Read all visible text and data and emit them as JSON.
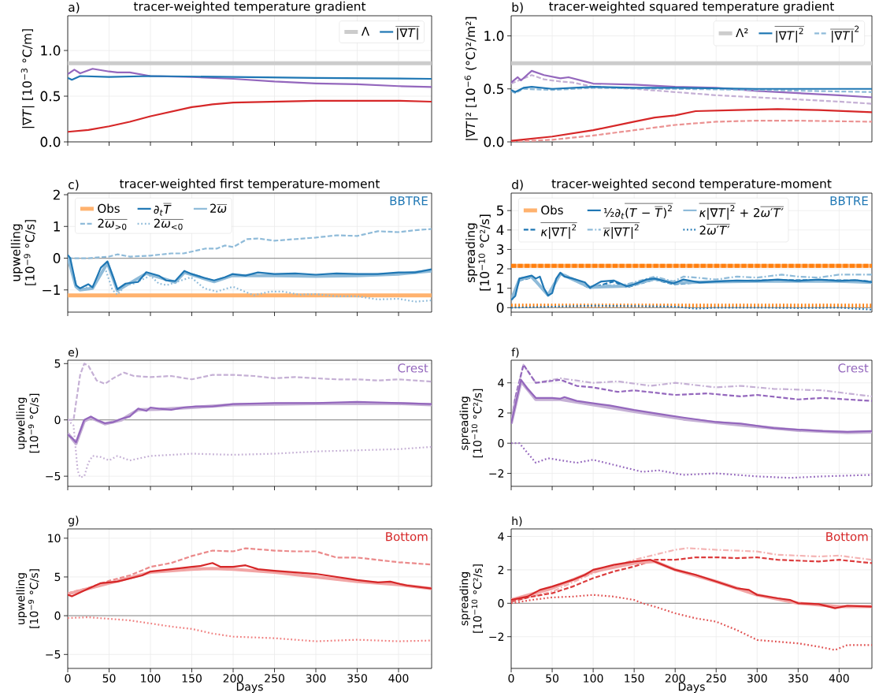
{
  "chart_data": [
    {
      "type": "line",
      "title": "tracer-weighted temperature gradient",
      "ylabel": "|∇*T*|  [10$^{−3}$ °C/m]",
      "annotations": [
        "a)"
      ],
      "xlim": [
        0,
        440
      ],
      "ylim": [
        0,
        1.38
      ],
      "xticks": [
        0,
        50,
        100,
        150,
        200,
        250,
        300,
        350,
        400
      ],
      "yticks": [
        {
          "value": 0,
          "label": "0.0"
        },
        0.5,
        {
          "value": 1,
          "label": "1.0"
        }
      ],
      "tick_labels": "y",
      "grid": true,
      "legend": "top right",
      "ref_lines": [
        {
          "axis": "y",
          "value": 0.86,
          "label": "Λ",
          "color": "#cccccc",
          "line_style": "solid"
        }
      ],
      "series": [
        {
          "name": "\\overline{\\text{|∇\\textit{T}|}}",
          "color": "#1f77b4",
          "line_style": "solid",
          "x": [
            0,
            5,
            15,
            50,
            100,
            200,
            300,
            440
          ],
          "values": [
            0.7,
            0.68,
            0.72,
            0.71,
            0.72,
            0.71,
            0.7,
            0.69
          ]
        },
        {
          "color": "#9467bd",
          "line_style": "solid",
          "x": [
            0,
            8,
            15,
            30,
            50,
            60,
            75,
            100,
            150,
            200,
            250,
            300,
            350,
            400,
            440
          ],
          "values": [
            0.74,
            0.79,
            0.75,
            0.8,
            0.77,
            0.76,
            0.76,
            0.72,
            0.71,
            0.69,
            0.66,
            0.64,
            0.63,
            0.61,
            0.6
          ]
        },
        {
          "color": "#d62728",
          "line_style": "solid",
          "x": [
            0,
            25,
            50,
            75,
            100,
            125,
            150,
            175,
            200,
            250,
            300,
            350,
            400,
            440
          ],
          "values": [
            0.11,
            0.13,
            0.17,
            0.22,
            0.28,
            0.33,
            0.38,
            0.41,
            0.43,
            0.44,
            0.45,
            0.45,
            0.45,
            0.44
          ]
        }
      ]
    },
    {
      "type": "line",
      "title": "tracer-weighted squared temperature gradient",
      "ylabel": "|∇*T*|²  [10$^{−6}$ (°C)²/m²]",
      "annotations": [
        "b)"
      ],
      "xlim": [
        0,
        440
      ],
      "ylim": [
        0,
        1.19
      ],
      "xticks": [
        0,
        50,
        100,
        150,
        200,
        250,
        300,
        350,
        400
      ],
      "yticks": [
        {
          "value": 0,
          "label": "0.0"
        },
        0.5,
        {
          "value": 1,
          "label": "1.0"
        }
      ],
      "tick_labels": "y",
      "grid": true,
      "legend": "top right",
      "ref_lines": [
        {
          "axis": "y",
          "value": 0.742,
          "label": "Λ²",
          "color": "#cccccc",
          "line_style": "solid"
        }
      ],
      "series": [
        {
          "name": "\\overline{\\text{|∇\\textit{T}|}^{\\text{2}}}",
          "color": "#1f77b4",
          "line_style": "solid",
          "x": [
            0,
            5,
            15,
            25,
            50,
            100,
            150,
            200,
            300,
            440
          ],
          "values": [
            0.49,
            0.47,
            0.51,
            0.52,
            0.5,
            0.52,
            0.51,
            0.51,
            0.5,
            0.5
          ]
        },
        {
          "name": "\\overline{\\text{|∇\\textit{T}|}}^{\\text{2}}",
          "color": "#8fbbd9",
          "line_style": "dashed",
          "x": [
            0,
            5,
            15,
            50,
            100,
            200,
            300,
            440
          ],
          "values": [
            0.48,
            0.46,
            0.5,
            0.49,
            0.51,
            0.5,
            0.49,
            0.47
          ]
        },
        {
          "color": "#9467bd",
          "line_style": "solid",
          "x": [
            0,
            8,
            12,
            25,
            40,
            60,
            70,
            90,
            100,
            150,
            200,
            250,
            300,
            350,
            400,
            440
          ],
          "values": [
            0.56,
            0.61,
            0.58,
            0.67,
            0.63,
            0.6,
            0.61,
            0.57,
            0.55,
            0.54,
            0.52,
            0.51,
            0.48,
            0.46,
            0.44,
            0.42
          ]
        },
        {
          "color": "#c5b0d5",
          "line_style": "dashed",
          "x": [
            0,
            25,
            40,
            60,
            75,
            100,
            150,
            200,
            250,
            300,
            350,
            400,
            440
          ],
          "values": [
            0.55,
            0.63,
            0.59,
            0.57,
            0.56,
            0.52,
            0.5,
            0.47,
            0.44,
            0.42,
            0.4,
            0.38,
            0.36
          ]
        },
        {
          "color": "#d62728",
          "line_style": "solid",
          "x": [
            0,
            50,
            100,
            150,
            175,
            200,
            225,
            275,
            325,
            375,
            440
          ],
          "values": [
            0.01,
            0.05,
            0.11,
            0.19,
            0.23,
            0.25,
            0.29,
            0.3,
            0.31,
            0.3,
            0.28
          ]
        },
        {
          "color": "#eb9393",
          "line_style": "dashed",
          "x": [
            0,
            50,
            100,
            150,
            200,
            250,
            300,
            350,
            440
          ],
          "values": [
            0.0,
            0.02,
            0.06,
            0.11,
            0.16,
            0.19,
            0.2,
            0.2,
            0.19
          ]
        }
      ]
    },
    {
      "type": "line",
      "title": "tracer-weighted first temperature-moment",
      "ylabel": "upwelling [10$^{−9}$ °C/s]",
      "annotations": [
        "c)",
        "BBTRE"
      ],
      "xlim": [
        0,
        440
      ],
      "ylim": [
        -1.7,
        2.05
      ],
      "xticks": [
        0,
        50,
        100,
        150,
        200,
        250,
        300,
        350,
        400
      ],
      "yticks": [
        {
          "value": -1,
          "label": "−1"
        },
        0,
        1,
        2
      ],
      "tick_labels": "y",
      "grid": true,
      "legend": "top left",
      "ref_lines": [
        {
          "axis": "y",
          "value": 0,
          "color": "#999999",
          "line_style": "solid"
        },
        {
          "axis": "y",
          "value": -1.17,
          "label": "Obs",
          "color": "#ffb26e",
          "line_style": "solid"
        }
      ],
      "series": [
        {
          "name": "\\text{∂}_{\\text{\\textit{t}}}\\overline{\\text{\\textit{T}}}",
          "color": "#1f77b4",
          "line_style": "solid",
          "x": [
            0,
            3,
            10,
            15,
            25,
            30,
            40,
            48,
            55,
            60,
            70,
            85,
            95,
            110,
            119,
            130,
            141,
            150,
            165,
            177,
            190,
            199,
            215,
            230,
            250,
            275,
            300,
            325,
            350,
            375,
            400,
            420,
            440
          ],
          "values": [
            0.1,
            0.0,
            -0.85,
            -0.95,
            -0.82,
            -0.92,
            -0.3,
            -0.1,
            -0.6,
            -0.98,
            -0.8,
            -0.75,
            -0.44,
            -0.55,
            -0.7,
            -0.72,
            -0.4,
            -0.5,
            -0.62,
            -0.7,
            -0.6,
            -0.5,
            -0.55,
            -0.45,
            -0.5,
            -0.48,
            -0.52,
            -0.48,
            -0.5,
            -0.5,
            -0.45,
            -0.45,
            -0.35
          ]
        },
        {
          "name": "\\text{2}\\overline{\\text{\\textit{ω}}}",
          "color": "#8fbbd9",
          "line_style": "solid",
          "x": [
            0,
            10,
            15,
            30,
            48,
            60,
            95,
            130,
            141,
            177,
            199,
            250,
            300,
            350,
            400,
            440
          ],
          "values": [
            0.05,
            -0.9,
            -1.0,
            -0.95,
            -0.15,
            -1.02,
            -0.48,
            -0.76,
            -0.45,
            -0.74,
            -0.55,
            -0.55,
            -0.57,
            -0.55,
            -0.5,
            -0.4
          ]
        },
        {
          "name": "\\text{2}\\overline{\\text{\\textit{ω}}_{\\text{>0}}}",
          "color": "#8fbbd9",
          "line_style": "dashed",
          "x": [
            0,
            25,
            50,
            60,
            75,
            100,
            125,
            140,
            166,
            180,
            190,
            200,
            217,
            230,
            250,
            275,
            300,
            325,
            350,
            375,
            400,
            420,
            440
          ],
          "values": [
            0.0,
            0.0,
            0.05,
            0.12,
            0.05,
            0.08,
            0.15,
            0.15,
            0.3,
            0.3,
            0.4,
            0.35,
            0.6,
            0.62,
            0.55,
            0.6,
            0.65,
            0.72,
            0.7,
            0.85,
            0.82,
            0.88,
            0.92
          ]
        },
        {
          "name": "\\text{2}\\overline{\\text{\\textit{ω}}_{\\text{<0}}}",
          "color": "#8fbbd9",
          "line_style": "dotted",
          "x": [
            0,
            10,
            15,
            30,
            45,
            54,
            60,
            70,
            80,
            100,
            110,
            120,
            149,
            165,
            180,
            200,
            225,
            245,
            260,
            280,
            300,
            325,
            350,
            375,
            400,
            420,
            440
          ],
          "values": [
            0.0,
            -0.9,
            -0.95,
            -0.9,
            -0.3,
            -1.0,
            -1.15,
            -0.85,
            -0.8,
            -0.55,
            -0.8,
            -0.85,
            -0.6,
            -0.95,
            -1.05,
            -0.9,
            -1.17,
            -1.05,
            -1.05,
            -1.15,
            -1.13,
            -1.2,
            -1.2,
            -1.3,
            -1.28,
            -1.37,
            -1.33
          ]
        }
      ]
    },
    {
      "type": "line",
      "title": "tracer-weighted second temperature-moment",
      "ylabel": "spreading [10$^{−10}$ °C²/s]",
      "annotations": [
        "d)",
        "BBTRE"
      ],
      "xlim": [
        0,
        440
      ],
      "ylim": [
        -0.23,
        5.9
      ],
      "xticks": [
        0,
        50,
        100,
        150,
        200,
        250,
        300,
        350,
        400
      ],
      "yticks": [
        0,
        1,
        2,
        3,
        4,
        5
      ],
      "tick_labels": "y",
      "grid": true,
      "legend": "top left",
      "ref_lines": [
        {
          "axis": "y",
          "value": 0,
          "color": "#999999",
          "line_style": "solid"
        },
        {
          "axis": "y",
          "value": 2.15,
          "label": "Obs",
          "color": "#ffb26e",
          "line_style": "solid"
        },
        {
          "axis": "y",
          "value": 2.15,
          "color": "#ff7f0e",
          "line_style": "dashed"
        },
        {
          "axis": "y",
          "value": 0.1,
          "color": "#ff7f0e",
          "line_style": "dotted"
        }
      ],
      "series": [
        {
          "name": "\\text{½∂}_{\\text{\\textit{t}}}\\overline{\\text{(\\textit{T} − }\\overline{\\text{\\textit{T}}}\\text{)}^{\\text{2}}}",
          "color": "#1f77b4",
          "line_style": "solid",
          "x": [
            0,
            5,
            10,
            20,
            25,
            30,
            35,
            40,
            45,
            50,
            55,
            60,
            65,
            75,
            90,
            96,
            110,
            125,
            141,
            150,
            165,
            175,
            198,
            210,
            230,
            250,
            275,
            300,
            325,
            350,
            375,
            400,
            420,
            440
          ],
          "values": [
            0.4,
            0.6,
            1.5,
            1.6,
            1.65,
            1.5,
            1.6,
            1.0,
            0.62,
            0.75,
            1.5,
            1.8,
            1.6,
            1.5,
            1.3,
            1.03,
            1.35,
            1.4,
            1.1,
            1.2,
            1.45,
            1.5,
            1.25,
            1.45,
            1.3,
            1.35,
            1.4,
            1.38,
            1.45,
            1.38,
            1.45,
            1.38,
            1.42,
            1.32
          ]
        },
        {
          "name": "\\overline{\\text{\\textit{κ}|∇\\textit{T}|}^{\\text{2}}}\\text{ + 2}\\overline{\\text{\\textit{ω}′\\textit{T}′}}",
          "color": "#8fbbd9",
          "line_style": "solid",
          "x": [
            0,
            10,
            25,
            45,
            60,
            96,
            141,
            175,
            198,
            250,
            300,
            350,
            400,
            440
          ],
          "values": [
            0.4,
            1.45,
            1.6,
            0.65,
            1.75,
            1.05,
            1.12,
            1.48,
            1.28,
            1.33,
            1.36,
            1.36,
            1.36,
            1.3
          ]
        },
        {
          "name": "\\overline{\\text{\\textit{κ}|∇\\textit{T}|}^{\\text{2}}}",
          "color": "#1f77b4",
          "line_style": "dashed",
          "x": [
            0,
            10,
            25,
            45,
            60,
            75,
            96,
            125,
            141,
            175,
            198,
            230,
            275,
            325,
            375,
            420,
            440
          ],
          "values": [
            0.4,
            1.4,
            1.55,
            0.65,
            1.75,
            1.45,
            1.0,
            1.35,
            1.05,
            1.45,
            1.2,
            1.3,
            1.38,
            1.42,
            1.42,
            1.4,
            1.35
          ]
        },
        {
          "name": "\\overline{\\text{\\textit{κ}}}\\overline{\\text{|∇\\textit{T}|}^{\\text{2}}}",
          "color": "#8fbbd9",
          "line_style": "dashdot",
          "x": [
            0,
            10,
            25,
            45,
            60,
            96,
            141,
            175,
            198,
            210,
            225,
            250,
            275,
            300,
            330,
            350,
            375,
            400,
            440
          ],
          "values": [
            0.4,
            1.5,
            1.6,
            0.7,
            1.8,
            1.1,
            1.2,
            1.6,
            1.35,
            1.6,
            1.55,
            1.45,
            1.6,
            1.55,
            1.7,
            1.6,
            1.55,
            1.7,
            1.7
          ]
        },
        {
          "name": "\\text{2}\\overline{\\text{\\textit{ω}′\\textit{T}′}}",
          "color": "#1f77b4",
          "line_style": "dotted",
          "x": [
            0,
            50,
            100,
            150,
            200,
            225,
            250,
            300,
            350,
            400,
            440
          ],
          "values": [
            0.0,
            0.05,
            0.1,
            0.08,
            0.05,
            -0.05,
            0.0,
            0.0,
            -0.02,
            0.0,
            -0.1
          ]
        }
      ]
    },
    {
      "type": "line",
      "ylabel": "upwelling [10$^{−9}$ °C/s]",
      "annotations": [
        "e)",
        "Crest"
      ],
      "xlim": [
        0,
        440
      ],
      "ylim": [
        -5.9,
        5.3
      ],
      "xticks": [
        0,
        50,
        100,
        150,
        200,
        250,
        300,
        350,
        400
      ],
      "yticks": [
        {
          "value": -5,
          "label": "−5"
        },
        0,
        5
      ],
      "tick_labels": "y",
      "grid": true,
      "ref_lines": [
        {
          "axis": "y",
          "value": 0,
          "color": "#999999",
          "line_style": "solid"
        }
      ],
      "series": [
        {
          "color": "#9467bd",
          "line_style": "solid",
          "x": [
            0,
            5,
            10,
            15,
            20,
            28,
            35,
            45,
            55,
            65,
            75,
            85,
            95,
            100,
            110,
            125,
            140,
            155,
            175,
            200,
            250,
            300,
            350,
            400,
            440
          ],
          "values": [
            -1.3,
            -1.6,
            -2.0,
            -1.0,
            0.0,
            0.3,
            0.0,
            -0.3,
            -0.2,
            0.1,
            0.3,
            1.0,
            0.8,
            1.1,
            1.0,
            0.9,
            1.1,
            1.2,
            1.2,
            1.4,
            1.5,
            1.5,
            1.6,
            1.5,
            1.4
          ]
        },
        {
          "color": "#c5b0d5",
          "line_style": "solid",
          "x": [
            0,
            10,
            20,
            28,
            45,
            65,
            85,
            110,
            150,
            200,
            300,
            400,
            440
          ],
          "values": [
            -1.2,
            -2.1,
            -0.1,
            0.2,
            -0.35,
            0.0,
            0.9,
            0.95,
            1.1,
            1.35,
            1.45,
            1.45,
            1.35
          ]
        },
        {
          "color": "#c5b0d5",
          "line_style": "dashed",
          "x": [
            0,
            7,
            15,
            20,
            25,
            35,
            45,
            55,
            68,
            80,
            100,
            125,
            150,
            175,
            200,
            225,
            250,
            275,
            300,
            325,
            350,
            375,
            400,
            440
          ],
          "values": [
            0.0,
            0.0,
            4.0,
            5.0,
            4.8,
            3.5,
            3.2,
            3.7,
            4.2,
            3.9,
            3.8,
            3.9,
            3.6,
            4.0,
            4.0,
            3.9,
            3.7,
            3.8,
            3.7,
            3.6,
            3.6,
            3.5,
            3.6,
            3.4
          ]
        },
        {
          "color": "#c5b0d5",
          "line_style": "dotted",
          "x": [
            0,
            7,
            12,
            15,
            20,
            25,
            30,
            40,
            50,
            60,
            75,
            100,
            125,
            150,
            200,
            250,
            300,
            350,
            400,
            440
          ],
          "values": [
            0.0,
            -0.5,
            -4.5,
            -5.1,
            -5.0,
            -3.8,
            -3.2,
            -3.3,
            -3.6,
            -3.2,
            -3.6,
            -3.2,
            -3.1,
            -3.0,
            -3.1,
            -3.0,
            -2.8,
            -2.7,
            -2.6,
            -2.4
          ]
        }
      ]
    },
    {
      "type": "line",
      "ylabel": "spreading [10$^{−10}$ °C²/s]",
      "annotations": [
        "f)",
        "Crest"
      ],
      "xlim": [
        0,
        440
      ],
      "ylim": [
        -2.86,
        5.5
      ],
      "xticks": [
        0,
        50,
        100,
        150,
        200,
        250,
        300,
        350,
        400
      ],
      "yticks": [
        {
          "value": -2,
          "label": "−2"
        },
        0,
        2,
        4
      ],
      "tick_labels": "y",
      "grid": true,
      "ref_lines": [
        {
          "axis": "y",
          "value": 0,
          "color": "#999999",
          "line_style": "solid"
        }
      ],
      "series": [
        {
          "color": "#9467bd",
          "line_style": "solid",
          "x": [
            0,
            5,
            12,
            20,
            30,
            50,
            60,
            65,
            80,
            100,
            120,
            150,
            185,
            210,
            250,
            280,
            320,
            350,
            380,
            410,
            440
          ],
          "values": [
            1.3,
            2.5,
            4.2,
            3.6,
            3.0,
            3.0,
            2.95,
            3.05,
            2.8,
            2.65,
            2.5,
            2.2,
            1.9,
            1.7,
            1.4,
            1.3,
            1.0,
            0.9,
            0.8,
            0.75,
            0.8
          ]
        },
        {
          "color": "#c5b0d5",
          "line_style": "solid",
          "x": [
            0,
            12,
            30,
            60,
            100,
            150,
            210,
            280,
            350,
            410,
            440
          ],
          "values": [
            1.3,
            4.1,
            2.9,
            2.9,
            2.55,
            2.1,
            1.6,
            1.2,
            0.85,
            0.7,
            0.75
          ]
        },
        {
          "color": "#9467bd",
          "line_style": "dashed",
          "x": [
            0,
            5,
            15,
            30,
            45,
            60,
            80,
            100,
            130,
            150,
            200,
            240,
            280,
            300,
            350,
            380,
            440
          ],
          "values": [
            1.3,
            3.0,
            5.2,
            4.0,
            4.1,
            4.2,
            3.8,
            3.7,
            3.4,
            3.5,
            3.2,
            3.3,
            3.1,
            3.2,
            2.9,
            3.0,
            2.8
          ]
        },
        {
          "color": "#c5b0d5",
          "line_style": "dashdot",
          "x": [
            0,
            5,
            15,
            30,
            60,
            100,
            130,
            170,
            200,
            250,
            280,
            320,
            380,
            440
          ],
          "values": [
            1.3,
            3.0,
            5.2,
            4.0,
            4.3,
            4.0,
            4.1,
            3.8,
            4.0,
            3.7,
            3.8,
            3.6,
            3.5,
            3.1
          ]
        },
        {
          "color": "#9467bd",
          "line_style": "dotted",
          "x": [
            0,
            10,
            30,
            45,
            80,
            100,
            130,
            160,
            180,
            210,
            250,
            300,
            340,
            380,
            440
          ],
          "values": [
            0.0,
            0.0,
            -1.3,
            -1.0,
            -1.3,
            -1.1,
            -1.5,
            -1.9,
            -1.8,
            -2.1,
            -2.0,
            -2.2,
            -2.3,
            -2.2,
            -2.1
          ]
        }
      ]
    },
    {
      "type": "line",
      "xlabel": "Days",
      "ylabel": "upwelling [10$^{−9}$ °C/s]",
      "annotations": [
        "g)",
        "Bottom"
      ],
      "xlim": [
        0,
        440
      ],
      "ylim": [
        -6.8,
        11.2
      ],
      "xticks": [
        0,
        50,
        100,
        150,
        200,
        250,
        300,
        350,
        400
      ],
      "yticks": [
        {
          "value": -5,
          "label": "−5"
        },
        0,
        5,
        10
      ],
      "grid": true,
      "ref_lines": [
        {
          "axis": "y",
          "value": 0,
          "color": "#999999",
          "line_style": "solid"
        }
      ],
      "series": [
        {
          "color": "#d62728",
          "line_style": "solid",
          "x": [
            0,
            5,
            15,
            25,
            40,
            60,
            75,
            90,
            100,
            125,
            150,
            160,
            175,
            185,
            200,
            215,
            230,
            250,
            275,
            300,
            325,
            350,
            375,
            390,
            410,
            440
          ],
          "values": [
            2.7,
            2.5,
            3.0,
            3.5,
            4.2,
            4.4,
            4.8,
            5.2,
            5.7,
            6.0,
            6.3,
            6.4,
            6.8,
            6.3,
            6.3,
            6.5,
            6.0,
            5.8,
            5.6,
            5.4,
            5.0,
            4.6,
            4.3,
            4.4,
            3.9,
            3.5
          ]
        },
        {
          "color": "#f2a5a5",
          "line_style": "solid",
          "x": [
            0,
            50,
            100,
            150,
            175,
            200,
            250,
            300,
            350,
            400,
            440
          ],
          "values": [
            2.8,
            4.2,
            5.6,
            6.0,
            6.1,
            6.0,
            5.6,
            5.0,
            4.4,
            4.0,
            3.5
          ]
        },
        {
          "color": "#eb8a8b",
          "line_style": "dashed",
          "x": [
            0,
            25,
            50,
            75,
            100,
            125,
            150,
            175,
            200,
            215,
            250,
            275,
            300,
            325,
            350,
            375,
            400,
            440
          ],
          "values": [
            2.9,
            3.6,
            4.5,
            5.2,
            6.3,
            6.8,
            7.7,
            8.4,
            8.3,
            8.7,
            8.4,
            8.3,
            8.3,
            7.5,
            7.5,
            7.2,
            6.9,
            6.6
          ]
        },
        {
          "color": "#f08080",
          "line_style": "dotted",
          "x": [
            0,
            25,
            50,
            75,
            100,
            125,
            150,
            175,
            200,
            250,
            300,
            350,
            400,
            440
          ],
          "values": [
            -0.3,
            -0.2,
            -0.4,
            -0.6,
            -1.0,
            -1.4,
            -1.7,
            -2.3,
            -2.7,
            -2.9,
            -3.3,
            -3.1,
            -3.3,
            -3.2
          ]
        }
      ]
    },
    {
      "type": "line",
      "xlabel": "Days",
      "ylabel": "spreading [10$^{−10}$ °C²/s]",
      "annotations": [
        "h)",
        "Bottom"
      ],
      "xlim": [
        0,
        440
      ],
      "ylim": [
        -3.9,
        4.45
      ],
      "xticks": [
        0,
        50,
        100,
        150,
        200,
        250,
        300,
        350,
        400
      ],
      "yticks": [
        {
          "value": -2,
          "label": "−2"
        },
        0,
        2,
        4
      ],
      "grid": true,
      "ref_lines": [
        {
          "axis": "y",
          "value": 0,
          "color": "#999999",
          "line_style": "solid"
        }
      ],
      "series": [
        {
          "color": "#d62728",
          "line_style": "solid",
          "x": [
            0,
            20,
            35,
            50,
            75,
            90,
            100,
            125,
            150,
            170,
            180,
            200,
            225,
            250,
            275,
            290,
            300,
            325,
            340,
            350,
            375,
            395,
            410,
            440
          ],
          "values": [
            0.2,
            0.4,
            0.8,
            1.0,
            1.4,
            1.7,
            2.0,
            2.3,
            2.5,
            2.6,
            2.4,
            2.0,
            1.7,
            1.3,
            0.9,
            0.8,
            0.5,
            0.3,
            0.2,
            0.0,
            -0.05,
            -0.3,
            -0.15,
            -0.2
          ]
        },
        {
          "color": "#f2a5a5",
          "line_style": "solid",
          "x": [
            0,
            50,
            100,
            150,
            175,
            200,
            250,
            300,
            350,
            400,
            440
          ],
          "values": [
            0.2,
            0.9,
            1.9,
            2.4,
            2.5,
            2.0,
            1.3,
            0.5,
            0.0,
            -0.2,
            -0.2
          ]
        },
        {
          "color": "#dc3c3d",
          "line_style": "dashed",
          "x": [
            0,
            25,
            50,
            75,
            100,
            125,
            150,
            175,
            200,
            225,
            250,
            275,
            300,
            325,
            350,
            375,
            400,
            440
          ],
          "values": [
            0.1,
            0.4,
            0.6,
            1.0,
            1.5,
            1.9,
            2.2,
            2.6,
            2.6,
            2.75,
            2.75,
            2.7,
            2.75,
            2.6,
            2.55,
            2.5,
            2.6,
            2.4
          ]
        },
        {
          "color": "#f4b4b4",
          "line_style": "dashdot",
          "x": [
            0,
            50,
            100,
            150,
            175,
            200,
            215,
            250,
            300,
            325,
            350,
            375,
            400,
            440
          ],
          "values": [
            0.1,
            0.7,
            1.8,
            2.6,
            2.9,
            3.2,
            3.3,
            3.2,
            3.1,
            2.9,
            2.85,
            2.8,
            2.85,
            2.6
          ]
        },
        {
          "color": "#e05050",
          "line_style": "dotted",
          "x": [
            0,
            25,
            50,
            75,
            100,
            125,
            150,
            160,
            175,
            200,
            225,
            250,
            275,
            300,
            325,
            350,
            375,
            395,
            410,
            440
          ],
          "values": [
            0.0,
            0.2,
            0.35,
            0.4,
            0.5,
            0.4,
            0.2,
            0.0,
            -0.2,
            -0.6,
            -0.9,
            -1.1,
            -1.6,
            -2.2,
            -2.3,
            -2.4,
            -2.6,
            -2.8,
            -2.5,
            -2.5
          ]
        }
      ]
    }
  ]
}
